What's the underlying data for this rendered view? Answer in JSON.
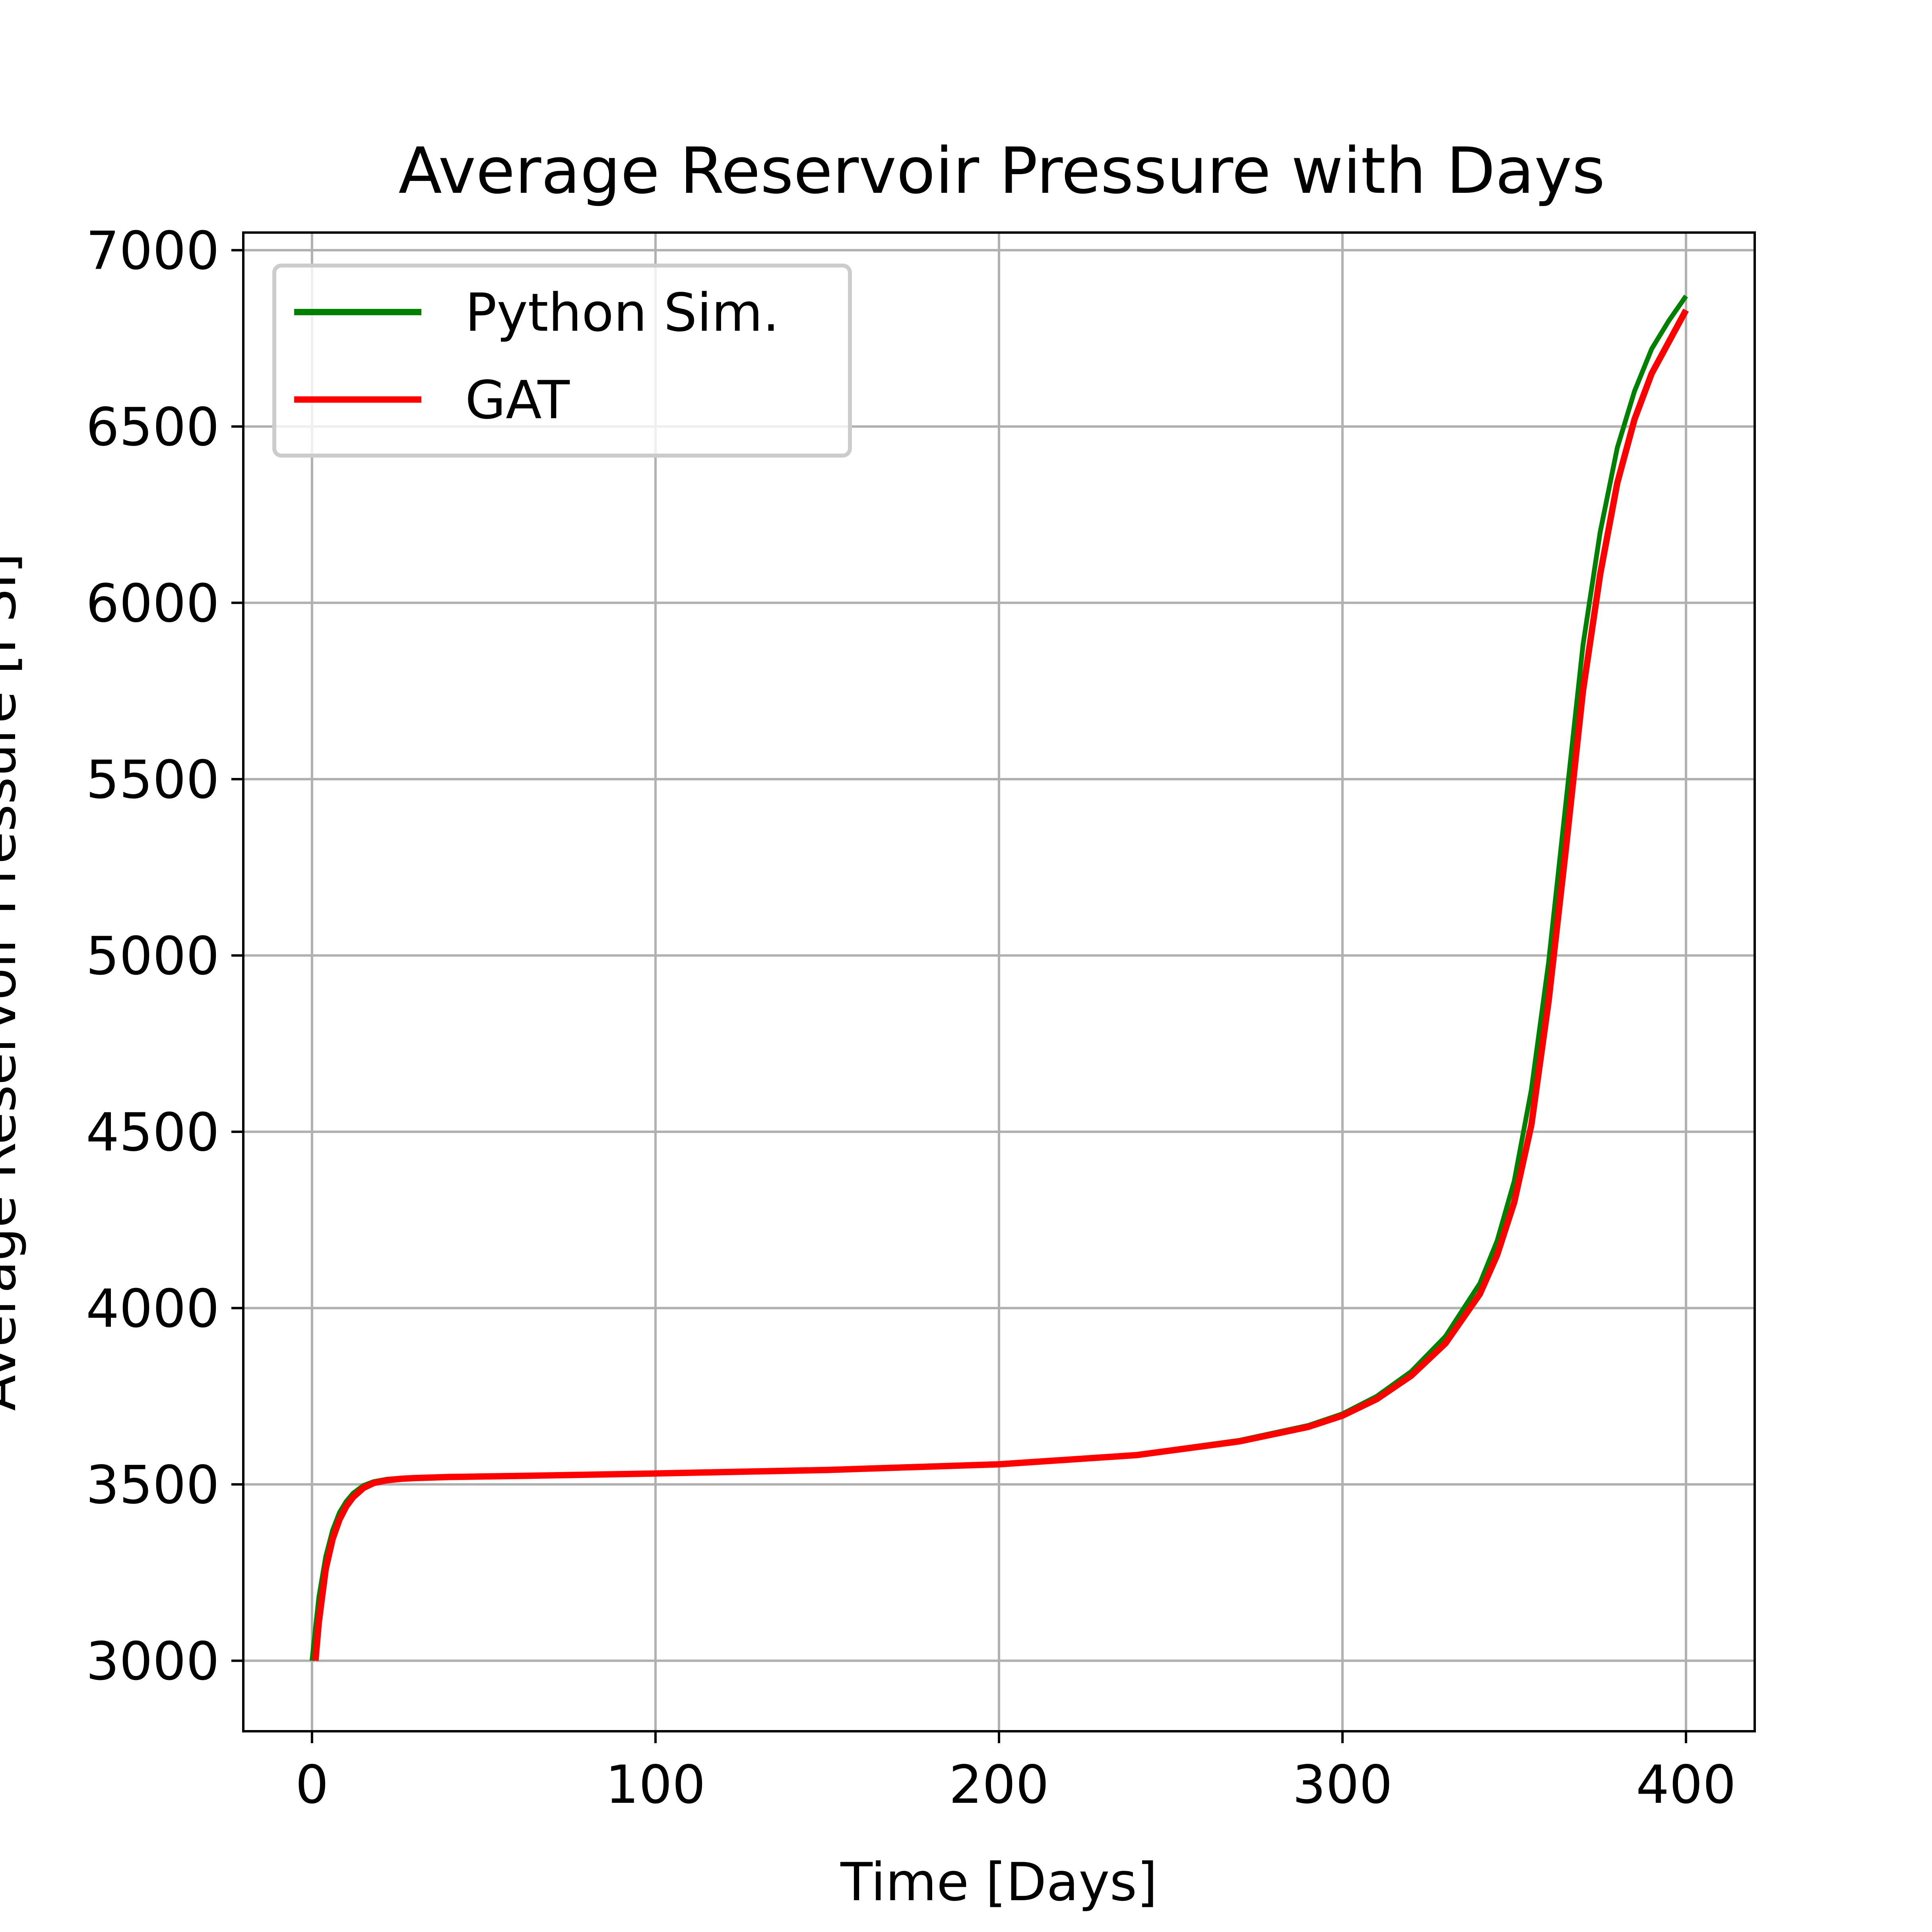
{
  "chart_data": {
    "type": "line",
    "title": "Average Reservoir Pressure with Days",
    "xlabel": "Time [Days]",
    "ylabel": "Average Reservoir Pressure [PSI]",
    "xlim": [
      -20,
      420
    ],
    "ylim": [
      2800,
      7050
    ],
    "xticks": [
      0,
      100,
      200,
      300,
      400
    ],
    "yticks": [
      3000,
      3500,
      4000,
      4500,
      5000,
      5500,
      6000,
      6500,
      7000
    ],
    "xtick_labels": [
      "0",
      "100",
      "200",
      "300",
      "400"
    ],
    "ytick_labels": [
      "3000",
      "3500",
      "4000",
      "4500",
      "5000",
      "5500",
      "6000",
      "6500",
      "7000"
    ],
    "grid": true,
    "legend_position": "upper-left",
    "series": [
      {
        "name": "Python Sim.",
        "color": "#008000",
        "x": [
          0,
          2,
          4,
          6,
          8,
          10,
          12,
          15,
          18,
          22,
          26,
          30,
          40,
          60,
          100,
          150,
          200,
          240,
          270,
          290,
          300,
          310,
          320,
          330,
          340,
          345,
          350,
          355,
          360,
          365,
          370,
          375,
          380,
          385,
          390,
          395,
          400
        ],
        "y": [
          3000,
          3180,
          3295,
          3370,
          3420,
          3452,
          3475,
          3497,
          3508,
          3515,
          3518,
          3520,
          3522,
          3525,
          3532,
          3542,
          3558,
          3585,
          3625,
          3667,
          3700,
          3750,
          3820,
          3920,
          4070,
          4190,
          4360,
          4620,
          4980,
          5430,
          5880,
          6200,
          6440,
          6600,
          6720,
          6800,
          6870
        ]
      },
      {
        "name": "GAT",
        "color": "#ff0000",
        "x": [
          1,
          2,
          4,
          6,
          8,
          10,
          12,
          15,
          18,
          22,
          26,
          30,
          40,
          60,
          100,
          150,
          200,
          240,
          270,
          290,
          300,
          310,
          320,
          330,
          340,
          345,
          350,
          355,
          360,
          365,
          370,
          375,
          380,
          385,
          390,
          395,
          400
        ],
        "y": [
          3000,
          3110,
          3260,
          3345,
          3400,
          3438,
          3464,
          3490,
          3504,
          3512,
          3516,
          3518,
          3521,
          3524,
          3531,
          3541,
          3557,
          3583,
          3622,
          3663,
          3695,
          3742,
          3808,
          3900,
          4040,
          4150,
          4300,
          4520,
          4870,
          5300,
          5750,
          6080,
          6340,
          6520,
          6650,
          6740,
          6830
        ]
      }
    ]
  }
}
